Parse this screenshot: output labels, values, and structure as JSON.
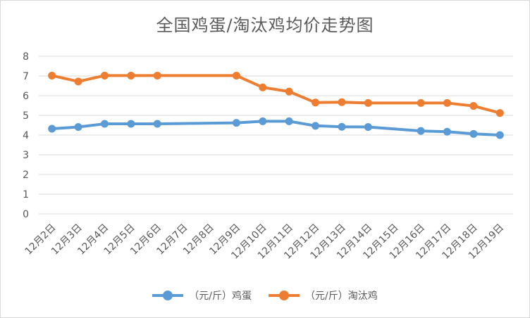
{
  "chart_data": {
    "type": "line",
    "title": "全国鸡蛋/淘汰鸡均价走势图",
    "categories": [
      "12月2日",
      "12月3日",
      "12月4日",
      "12月5日",
      "12月6日",
      "12月7日",
      "12月8日",
      "12月9日",
      "12月10日",
      "12月11日",
      "12月12日",
      "12月13日",
      "12月14日",
      "12月15日",
      "12月16日",
      "12月17日",
      "12月18日",
      "12月19日"
    ],
    "ylim": [
      0,
      8
    ],
    "yticks": [
      0,
      1,
      2,
      3,
      4,
      5,
      6,
      7,
      8
    ],
    "grid": true,
    "legend_position": "bottom",
    "series": [
      {
        "name": "（元/斤）鸡蛋",
        "color": "#5b9bd5",
        "values": [
          4.32,
          4.41,
          4.57,
          4.57,
          4.57,
          null,
          null,
          4.62,
          4.7,
          4.7,
          4.47,
          4.42,
          4.41,
          null,
          4.21,
          4.17,
          4.06,
          4.0
        ]
      },
      {
        "name": "（元/斤）淘汰鸡",
        "color": "#ed7d31",
        "values": [
          7.02,
          6.72,
          7.02,
          7.02,
          7.02,
          null,
          null,
          7.02,
          6.42,
          6.21,
          5.65,
          5.67,
          5.63,
          null,
          5.63,
          5.63,
          5.48,
          5.12
        ]
      }
    ]
  }
}
